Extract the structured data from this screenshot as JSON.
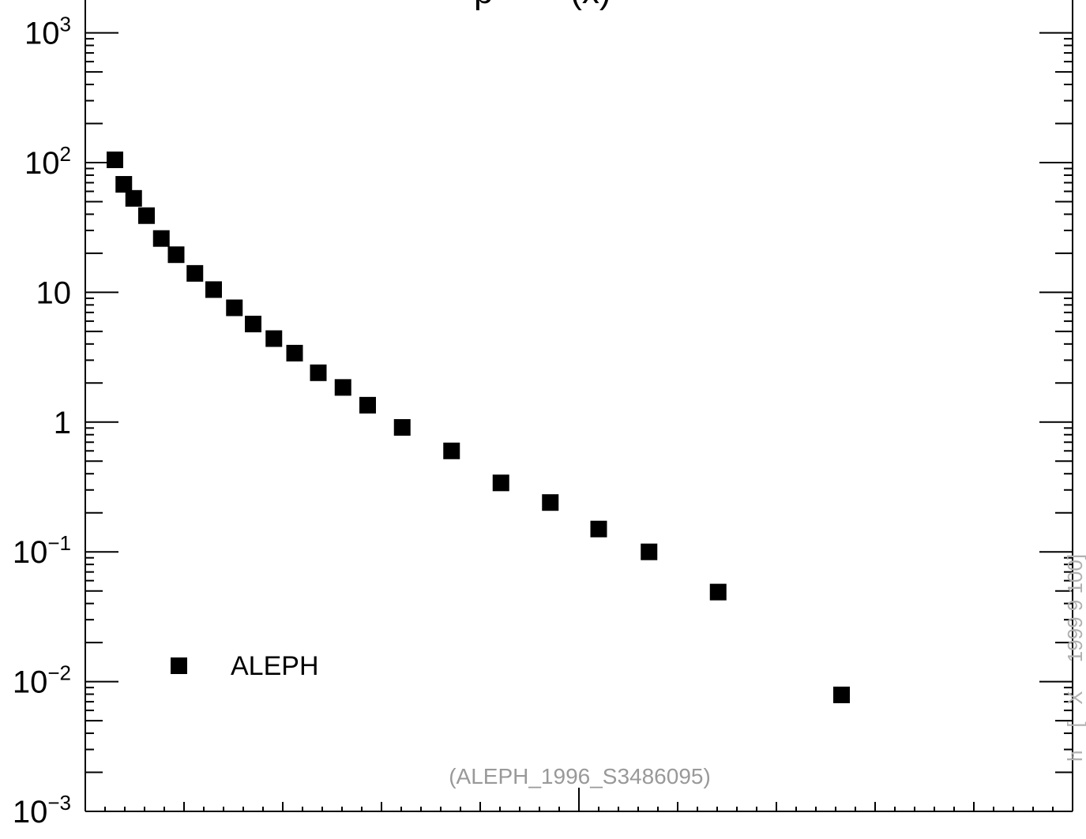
{
  "chart_data": {
    "type": "scatter",
    "title": "",
    "xlabel": "",
    "ylabel": "",
    "y_scale": "log",
    "ylim": [
      0.0005,
      1000
    ],
    "xlim": [
      0,
      1
    ],
    "grid": false,
    "legend_position": "bottom-left",
    "y_tick_labels": [
      {
        "base": "10",
        "exp": "3",
        "value": 1000
      },
      {
        "base": "10",
        "exp": "2",
        "value": 100
      },
      {
        "base": "10",
        "exp": "",
        "value": 10
      },
      {
        "base": "1",
        "exp": "",
        "value": 1
      },
      {
        "base": "10",
        "exp": "−1",
        "value": 0.1
      },
      {
        "base": "10",
        "exp": "−2",
        "value": 0.01
      },
      {
        "base": "10",
        "exp": "−3",
        "value": 0.001
      }
    ],
    "series": [
      {
        "name": "ALEPH",
        "color": "#000000",
        "marker": "square",
        "points": [
          {
            "x": 0.03,
            "y": 105
          },
          {
            "x": 0.039,
            "y": 68
          },
          {
            "x": 0.049,
            "y": 53
          },
          {
            "x": 0.062,
            "y": 39
          },
          {
            "x": 0.077,
            "y": 26
          },
          {
            "x": 0.092,
            "y": 19.5
          },
          {
            "x": 0.111,
            "y": 14
          },
          {
            "x": 0.13,
            "y": 10.5
          },
          {
            "x": 0.151,
            "y": 7.6
          },
          {
            "x": 0.17,
            "y": 5.7
          },
          {
            "x": 0.191,
            "y": 4.4
          },
          {
            "x": 0.212,
            "y": 3.4
          },
          {
            "x": 0.236,
            "y": 2.4
          },
          {
            "x": 0.261,
            "y": 1.85
          },
          {
            "x": 0.286,
            "y": 1.35
          },
          {
            "x": 0.321,
            "y": 0.91
          },
          {
            "x": 0.371,
            "y": 0.6
          },
          {
            "x": 0.421,
            "y": 0.34
          },
          {
            "x": 0.471,
            "y": 0.24
          },
          {
            "x": 0.52,
            "y": 0.15
          },
          {
            "x": 0.571,
            "y": 0.1
          },
          {
            "x": 0.641,
            "y": 0.049
          },
          {
            "x": 0.766,
            "y": 0.0079
          }
        ]
      }
    ]
  },
  "legend": {
    "label": "ALEPH",
    "marker_color": "#000000"
  },
  "watermark": "(ALEPH_1996_S3486095)",
  "title_fragment": "p        (x)",
  "side_text_fragment": "h    [   X     1999 9 100]"
}
